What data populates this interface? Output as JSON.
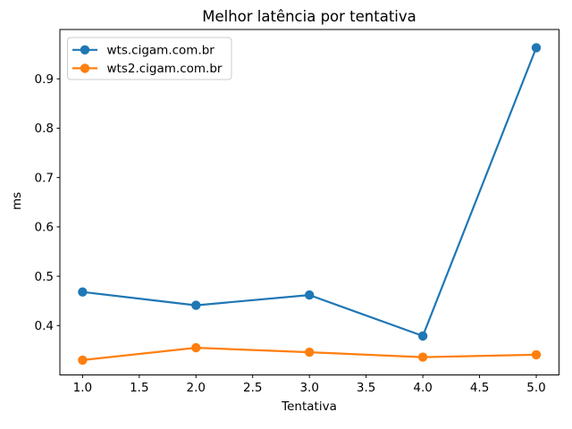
{
  "figure": {
    "background": "#ffffff"
  },
  "chart_data": {
    "type": "line",
    "title": "Melhor latência por tentativa",
    "xlabel": "Tentativa",
    "ylabel": "ms",
    "x": [
      1,
      2,
      3,
      4,
      5
    ],
    "series": [
      {
        "name": "wts.cigam.com.br",
        "color": "#1f77b4",
        "marker": "circle",
        "values": [
          0.468,
          0.441,
          0.462,
          0.379,
          0.963
        ]
      },
      {
        "name": "wts2.cigam.com.br",
        "color": "#ff7f0e",
        "marker": "circle",
        "values": [
          0.33,
          0.355,
          0.346,
          0.336,
          0.341
        ]
      }
    ],
    "xlim": [
      0.8,
      5.2
    ],
    "ylim": [
      0.3,
      1.0
    ],
    "xticks": {
      "values": [
        1,
        1.5,
        2,
        2.5,
        3,
        3.5,
        4,
        4.5,
        5
      ],
      "labels": [
        "1.0",
        "1.5",
        "2.0",
        "2.5",
        "3.0",
        "3.5",
        "4.0",
        "4.5",
        "5.0"
      ]
    },
    "yticks": {
      "values": [
        0.4,
        0.5,
        0.6,
        0.7,
        0.8,
        0.9
      ],
      "labels": [
        "0.4",
        "0.5",
        "0.6",
        "0.7",
        "0.8",
        "0.9"
      ]
    },
    "grid": false,
    "legend": {
      "position": "upper-left",
      "border_color": "#cccccc",
      "background": "#ffffff"
    },
    "axis_color": "#000000",
    "text_color": "#000000"
  }
}
